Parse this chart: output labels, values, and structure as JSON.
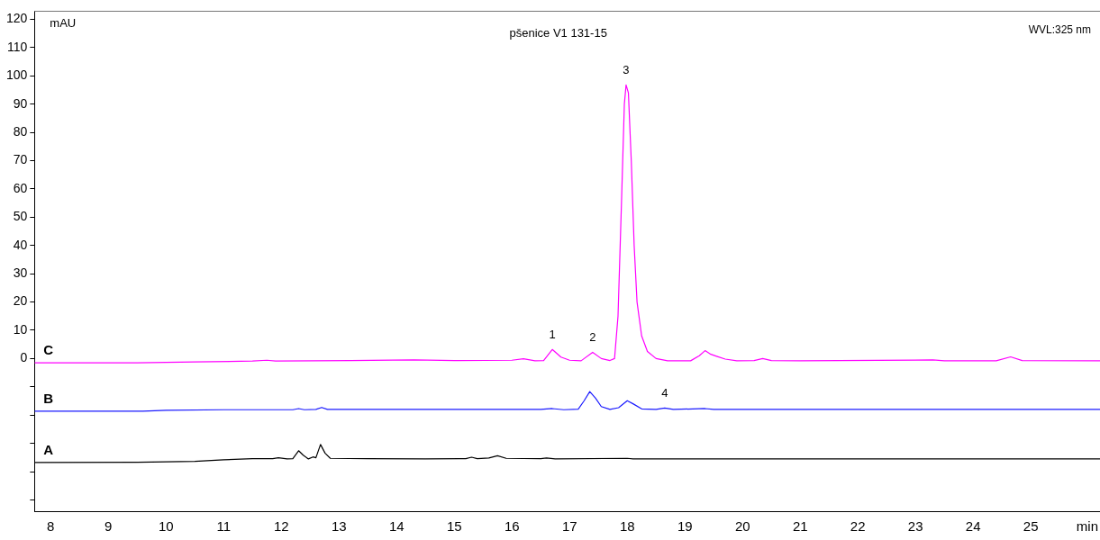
{
  "chart_data": {
    "type": "line",
    "title": "pšenice V1 131-15",
    "xlabel": "min",
    "ylabel": "mAU",
    "annotations": [
      {
        "text": "1",
        "x": 16.7,
        "y": 3.2
      },
      {
        "text": "2",
        "x": 17.4,
        "y": 2.2
      },
      {
        "text": "3",
        "x": 17.98,
        "y": 96.8
      },
      {
        "text": "4",
        "x": 18.65,
        "y": -17.5
      },
      "WVL:325 nm"
    ],
    "xlim": [
      7.72,
      26.2
    ],
    "xticks": [
      8,
      9,
      10,
      11,
      12,
      13,
      14,
      15,
      16,
      17,
      18,
      19,
      20,
      21,
      22,
      23,
      24,
      25
    ],
    "ylim": [
      -54,
      123
    ],
    "yticks": [
      {
        "value": -50,
        "label": null
      },
      {
        "value": -40,
        "label": null
      },
      {
        "value": -30,
        "label": null
      },
      {
        "value": -20,
        "label": null
      },
      {
        "value": -10,
        "label": null
      },
      0,
      10,
      20,
      30,
      40,
      50,
      60,
      70,
      80,
      90,
      100,
      110,
      120
    ],
    "grid": false,
    "legend": false,
    "marker": "none",
    "line_style": "solid",
    "series": [
      {
        "name": "C",
        "color": "#ff00ff",
        "x": [
          7.72,
          9.5,
          10.5,
          11.5,
          11.75,
          11.9,
          13.2,
          14.3,
          15.0,
          16.0,
          16.2,
          16.4,
          16.55,
          16.7,
          16.85,
          17.0,
          17.2,
          17.4,
          17.55,
          17.7,
          17.78,
          17.84,
          17.9,
          17.95,
          17.98,
          18.02,
          18.07,
          18.12,
          18.17,
          18.25,
          18.35,
          18.5,
          18.7,
          19.1,
          19.25,
          19.35,
          19.45,
          19.55,
          19.7,
          19.9,
          20.2,
          20.35,
          20.5,
          21.0,
          23.3,
          23.5,
          24.4,
          24.65,
          24.85,
          26.2
        ],
        "values": [
          -1.5,
          -1.5,
          -1.2,
          -0.9,
          -0.6,
          -0.9,
          -0.7,
          -0.5,
          -0.7,
          -0.6,
          -0.1,
          -0.8,
          -0.7,
          3.2,
          0.5,
          -0.6,
          -0.8,
          2.2,
          0,
          -0.7,
          0,
          15,
          55,
          90,
          96.8,
          94,
          70,
          40,
          20,
          8,
          2.5,
          0,
          -0.8,
          -0.8,
          1,
          2.8,
          1.5,
          0.8,
          -0.2,
          -0.8,
          -0.7,
          0,
          -0.7,
          -0.8,
          -0.5,
          -0.8,
          -0.8,
          0.6,
          -0.7,
          -0.8
        ]
      },
      {
        "name": "B",
        "color": "#1a1aff",
        "x": [
          7.72,
          9.6,
          10.0,
          11.0,
          12.2,
          12.3,
          12.4,
          12.6,
          12.7,
          12.8,
          16.5,
          16.7,
          16.9,
          17.15,
          17.25,
          17.35,
          17.45,
          17.55,
          17.7,
          17.85,
          18.0,
          18.1,
          18.25,
          18.5,
          18.65,
          18.8,
          19.35,
          19.5,
          26.2
        ],
        "values": [
          -18.6,
          -18.6,
          -18.3,
          -18.1,
          -18.1,
          -17.7,
          -18.1,
          -18,
          -17.3,
          -18,
          -18,
          -17.7,
          -18.1,
          -17.9,
          -15,
          -11.7,
          -14,
          -17,
          -18,
          -17.4,
          -14.9,
          -16,
          -17.8,
          -18,
          -17.5,
          -18,
          -17.7,
          -18,
          -18
        ]
      },
      {
        "name": "A",
        "color": "#000000",
        "x": [
          7.72,
          9.5,
          10.5,
          11.0,
          11.5,
          11.85,
          11.95,
          12.1,
          12.2,
          12.3,
          12.38,
          12.47,
          12.55,
          12.6,
          12.68,
          12.76,
          12.85,
          13.5,
          14.5,
          15.2,
          15.3,
          15.4,
          15.6,
          15.75,
          15.9,
          16.5,
          16.6,
          16.75,
          18.0,
          18.1,
          26.2
        ],
        "values": [
          -36.8,
          -36.7,
          -36.4,
          -35.8,
          -35.4,
          -35.4,
          -35.1,
          -35.5,
          -35.4,
          -32.6,
          -34.2,
          -35.5,
          -34.8,
          -35.1,
          -30.4,
          -33.5,
          -35.3,
          -35.4,
          -35.5,
          -35.4,
          -34.9,
          -35.4,
          -35.2,
          -34.4,
          -35.3,
          -35.4,
          -35.2,
          -35.5,
          -35.3,
          -35.5,
          -35.5
        ]
      }
    ]
  }
}
